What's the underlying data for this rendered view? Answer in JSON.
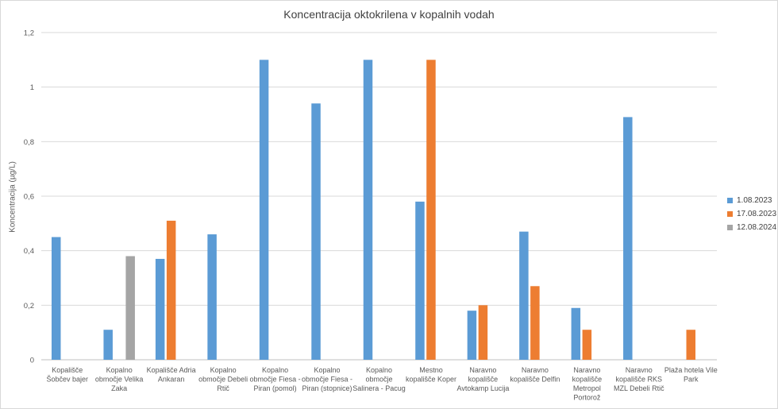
{
  "chart_data": {
    "type": "bar",
    "title": "Koncentracija oktokrilena v kopalnih vodah",
    "xlabel": "",
    "ylabel": "Koncentracija (µg/L)",
    "ylim": [
      0,
      1.2
    ],
    "yticks": [
      "0",
      "0,2",
      "0,4",
      "0,6",
      "0,8",
      "1",
      "1,2"
    ],
    "grid": true,
    "legend_position": "right",
    "categories": [
      [
        "Kopališče",
        "Šobčev bajer"
      ],
      [
        "Kopalno",
        "območje Velika",
        "Zaka"
      ],
      [
        "Kopališče Adria",
        "Ankaran"
      ],
      [
        "Kopalno",
        "območje Debeli",
        "Rtič"
      ],
      [
        "Kopalno",
        "območje Fiesa -",
        "Piran (pomol)"
      ],
      [
        "Kopalno",
        "območje Fiesa -",
        "Piran (stopnice)"
      ],
      [
        "Kopalno",
        "območje",
        "Salinera - Pacug"
      ],
      [
        "Mestno",
        "kopališče Koper"
      ],
      [
        "Naravno",
        "kopališče",
        "Avtokamp Lucija"
      ],
      [
        "Naravno",
        "kopališče Delfin"
      ],
      [
        "Naravno",
        "kopališče",
        "Metropol",
        "Portorož"
      ],
      [
        "Naravno",
        "kopališče RKS",
        "MZL Debeli Rtič"
      ],
      [
        "Plaža hotela Vile",
        "Park"
      ]
    ],
    "series": [
      {
        "name": "1.08.2023",
        "color": "#5b9bd5",
        "values": [
          0.45,
          0.11,
          0.37,
          0.46,
          1.1,
          0.94,
          1.1,
          0.58,
          0.18,
          0.47,
          0.19,
          0.89,
          null
        ]
      },
      {
        "name": "17.08.2023",
        "color": "#ed7d31",
        "values": [
          null,
          null,
          0.51,
          null,
          null,
          null,
          null,
          1.1,
          0.2,
          0.27,
          0.11,
          null,
          0.11
        ]
      },
      {
        "name": "12.08.2024",
        "color": "#a5a5a5",
        "values": [
          null,
          0.38,
          null,
          null,
          null,
          null,
          null,
          null,
          null,
          null,
          null,
          null,
          null
        ]
      }
    ]
  }
}
